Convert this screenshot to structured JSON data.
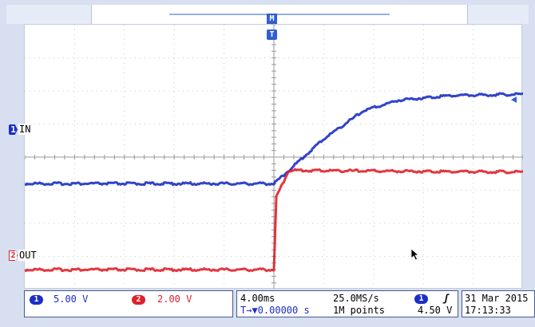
{
  "channels": {
    "ch1": {
      "number": "1",
      "label": "IN",
      "scale": "5.00 V",
      "color": "#1b2fc5"
    },
    "ch2": {
      "number": "2",
      "label": "OUT",
      "scale": "2.00 V",
      "color": "#e0202a"
    }
  },
  "trigger": {
    "marker": "T",
    "m_marker": "M",
    "level_arrow": "trigger-level-arrow-icon"
  },
  "timebase": {
    "scale": "4.00ms",
    "sample_rate": "25.0MS/s",
    "trigger_position": "T→▼0.00000 s",
    "record_length": "1M points",
    "trigger_channel": "1",
    "trigger_slope": "ʃ",
    "trigger_level": "4.50 V"
  },
  "datetime": {
    "date": "31 Mar 2015",
    "time": "17:13:33"
  },
  "chart_data": {
    "type": "line",
    "x_unit": "divisions",
    "y_unit": "divisions",
    "series": [
      {
        "name": "IN",
        "x": [
          0,
          5.0,
          5.3,
          6.0,
          6.8,
          7.5,
          8.5,
          10
        ],
        "y": [
          -0.8,
          -0.8,
          -0.4,
          0.55,
          1.4,
          1.72,
          1.86,
          1.9
        ]
      },
      {
        "name": "OUT",
        "x": [
          0,
          5.0,
          5.05,
          5.3,
          10
        ],
        "y": [
          -3.4,
          -3.4,
          -1.2,
          -0.4,
          -0.45
        ]
      }
    ]
  }
}
